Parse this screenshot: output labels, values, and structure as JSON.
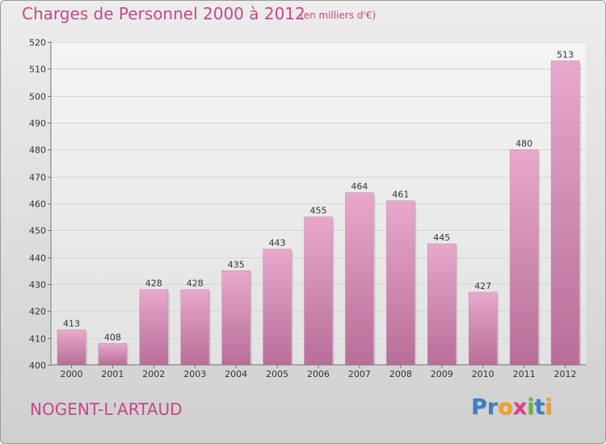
{
  "header": {
    "title": "Charges de Personnel 2000 à 2012",
    "unit_note": "(en milliers d'€)"
  },
  "footer": {
    "town": "NOGENT-L'ARTAUD",
    "brand": "Proxiti",
    "brand_letters": [
      {
        "char": "P",
        "color": "#3a7fc6"
      },
      {
        "char": "r",
        "color": "#3a7fc6"
      },
      {
        "char": "o",
        "color": "#f0a020"
      },
      {
        "char": "x",
        "color": "#e03c8c"
      },
      {
        "char": "i",
        "color": "#6cb43c"
      },
      {
        "char": "t",
        "color": "#3a7fc6"
      },
      {
        "char": "i",
        "color": "#f0a020"
      }
    ]
  },
  "colors": {
    "accent": "#c4488c",
    "bar_top": "#e8a8cc",
    "bar_bottom": "#b86e98",
    "grid": "#d6d6d6"
  },
  "chart_data": {
    "type": "bar",
    "title": "Charges de Personnel 2000 à 2012",
    "subtitle": "(en milliers d'€)",
    "categories": [
      "2000",
      "2001",
      "2002",
      "2003",
      "2004",
      "2005",
      "2006",
      "2007",
      "2008",
      "2009",
      "2010",
      "2011",
      "2012"
    ],
    "values": [
      413,
      408,
      428,
      428,
      435,
      443,
      455,
      464,
      461,
      445,
      427,
      480,
      513
    ],
    "ylim": [
      400,
      520
    ],
    "yticks": [
      400,
      410,
      420,
      430,
      440,
      450,
      460,
      470,
      480,
      490,
      500,
      510,
      520
    ],
    "grid": true,
    "legend": "none",
    "data_labels": true
  }
}
